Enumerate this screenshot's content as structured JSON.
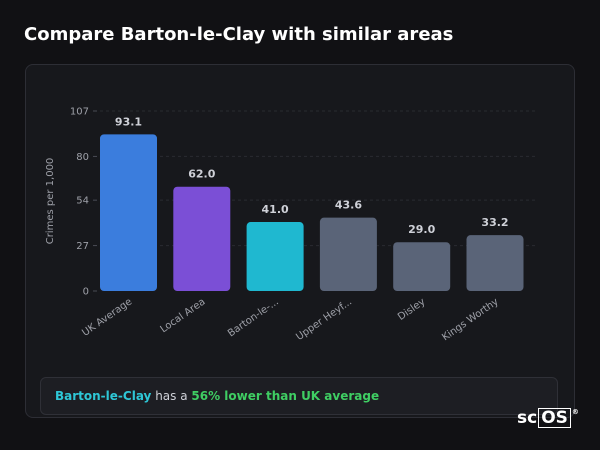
{
  "page": {
    "title": "Compare Barton-le-Clay with similar areas"
  },
  "chart_data": {
    "type": "bar",
    "ylabel": "Crimes per 1,000",
    "xlabel": "",
    "ylim": [
      0,
      107
    ],
    "yticks": [
      0,
      27,
      54,
      80,
      107
    ],
    "grid": true,
    "categories": [
      "UK Average",
      "Local Area",
      "Barton-le-...",
      "Upper Heyf...",
      "Disley",
      "Kings Worthy"
    ],
    "values": [
      93.1,
      62.0,
      41.0,
      43.6,
      29.0,
      33.2
    ],
    "value_labels": [
      "93.1",
      "62.0",
      "41.0",
      "43.6",
      "29.0",
      "33.2"
    ],
    "colors": [
      "#3b7ddd",
      "#7b4fd6",
      "#1fb8d0",
      "#5a6478",
      "#5a6478",
      "#5a6478"
    ],
    "legend": "none"
  },
  "summary": {
    "area": "Barton-le-Clay",
    "middle": " has a ",
    "difference": "56% lower than UK average"
  },
  "colors": {
    "background": "#111114",
    "card": "#17181c",
    "area_highlight": "#2ec7d6",
    "difference_highlight": "#3fce63"
  },
  "logo": {
    "text_plain": "sc",
    "text_boxed": "OS",
    "mark": "®"
  }
}
